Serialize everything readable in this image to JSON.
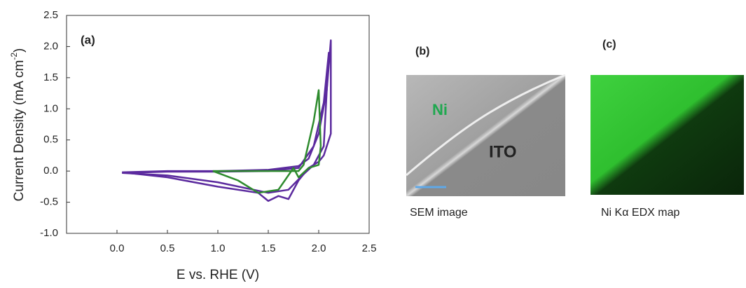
{
  "chart_data": {
    "type": "line",
    "panel_label": "(a)",
    "x_label": "E vs. RHE (V)",
    "y_label": "Current Density (mA cm",
    "y_label_sup": "-2",
    "y_label_end": ")",
    "xlim": [
      -0.5,
      2.5
    ],
    "xticks": [
      {
        "value": 0,
        "label": "0.0"
      },
      0.5,
      {
        "value": 1,
        "label": "1.0"
      },
      1.5,
      {
        "value": 2,
        "label": "2.0"
      },
      2.5
    ],
    "ylim": [
      -1.0,
      2.5
    ],
    "yticks": [
      {
        "value": -1,
        "label": "-1.0"
      },
      -0.5,
      {
        "value": 0,
        "label": "0.0"
      },
      0.5,
      {
        "value": 1,
        "label": "1.0"
      },
      1.5,
      {
        "value": 2,
        "label": "2.0"
      },
      2.5
    ],
    "series": [
      {
        "color": "#5b2a9e",
        "x": [
          0.05,
          0.5,
          1.0,
          1.5,
          1.8,
          1.9,
          2.0,
          2.08,
          2.12,
          2.12,
          2.05,
          2.0,
          1.9,
          1.8,
          1.7,
          1.6,
          1.5,
          1.4,
          1.0,
          0.5,
          0.05
        ],
        "values": [
          -0.02,
          0.0,
          0.0,
          0.02,
          0.08,
          0.2,
          0.6,
          1.3,
          2.1,
          0.6,
          0.25,
          0.15,
          0.05,
          -0.15,
          -0.45,
          -0.4,
          -0.48,
          -0.35,
          -0.25,
          -0.1,
          -0.02
        ]
      },
      {
        "color": "#5b2a9e",
        "x": [
          0.05,
          0.5,
          1.0,
          1.5,
          1.8,
          1.95,
          2.05,
          2.1,
          2.05,
          1.95,
          1.85,
          1.7,
          1.5,
          1.0,
          0.5,
          0.05
        ],
        "values": [
          -0.03,
          -0.01,
          -0.01,
          0.0,
          0.05,
          0.4,
          1.1,
          1.9,
          0.4,
          0.1,
          -0.05,
          -0.3,
          -0.35,
          -0.18,
          -0.07,
          -0.03
        ]
      },
      {
        "color": "#2e8b2e",
        "x": [
          0.95,
          1.4,
          1.8,
          1.85,
          1.95,
          2.0,
          2.02,
          2.0,
          1.9,
          1.8,
          1.75,
          1.6,
          1.4,
          1.2,
          0.95
        ],
        "values": [
          0.0,
          0.0,
          0.0,
          0.1,
          0.8,
          1.3,
          0.4,
          0.1,
          0.05,
          -0.1,
          0.05,
          -0.3,
          -0.35,
          -0.15,
          0.0
        ]
      }
    ]
  },
  "panels": [
    {
      "label": "(b)",
      "texts": [
        "Ni",
        "ITO"
      ],
      "caption": "SEM image"
    },
    {
      "label": "(c)",
      "caption": "Ni Kα EDX map"
    }
  ]
}
